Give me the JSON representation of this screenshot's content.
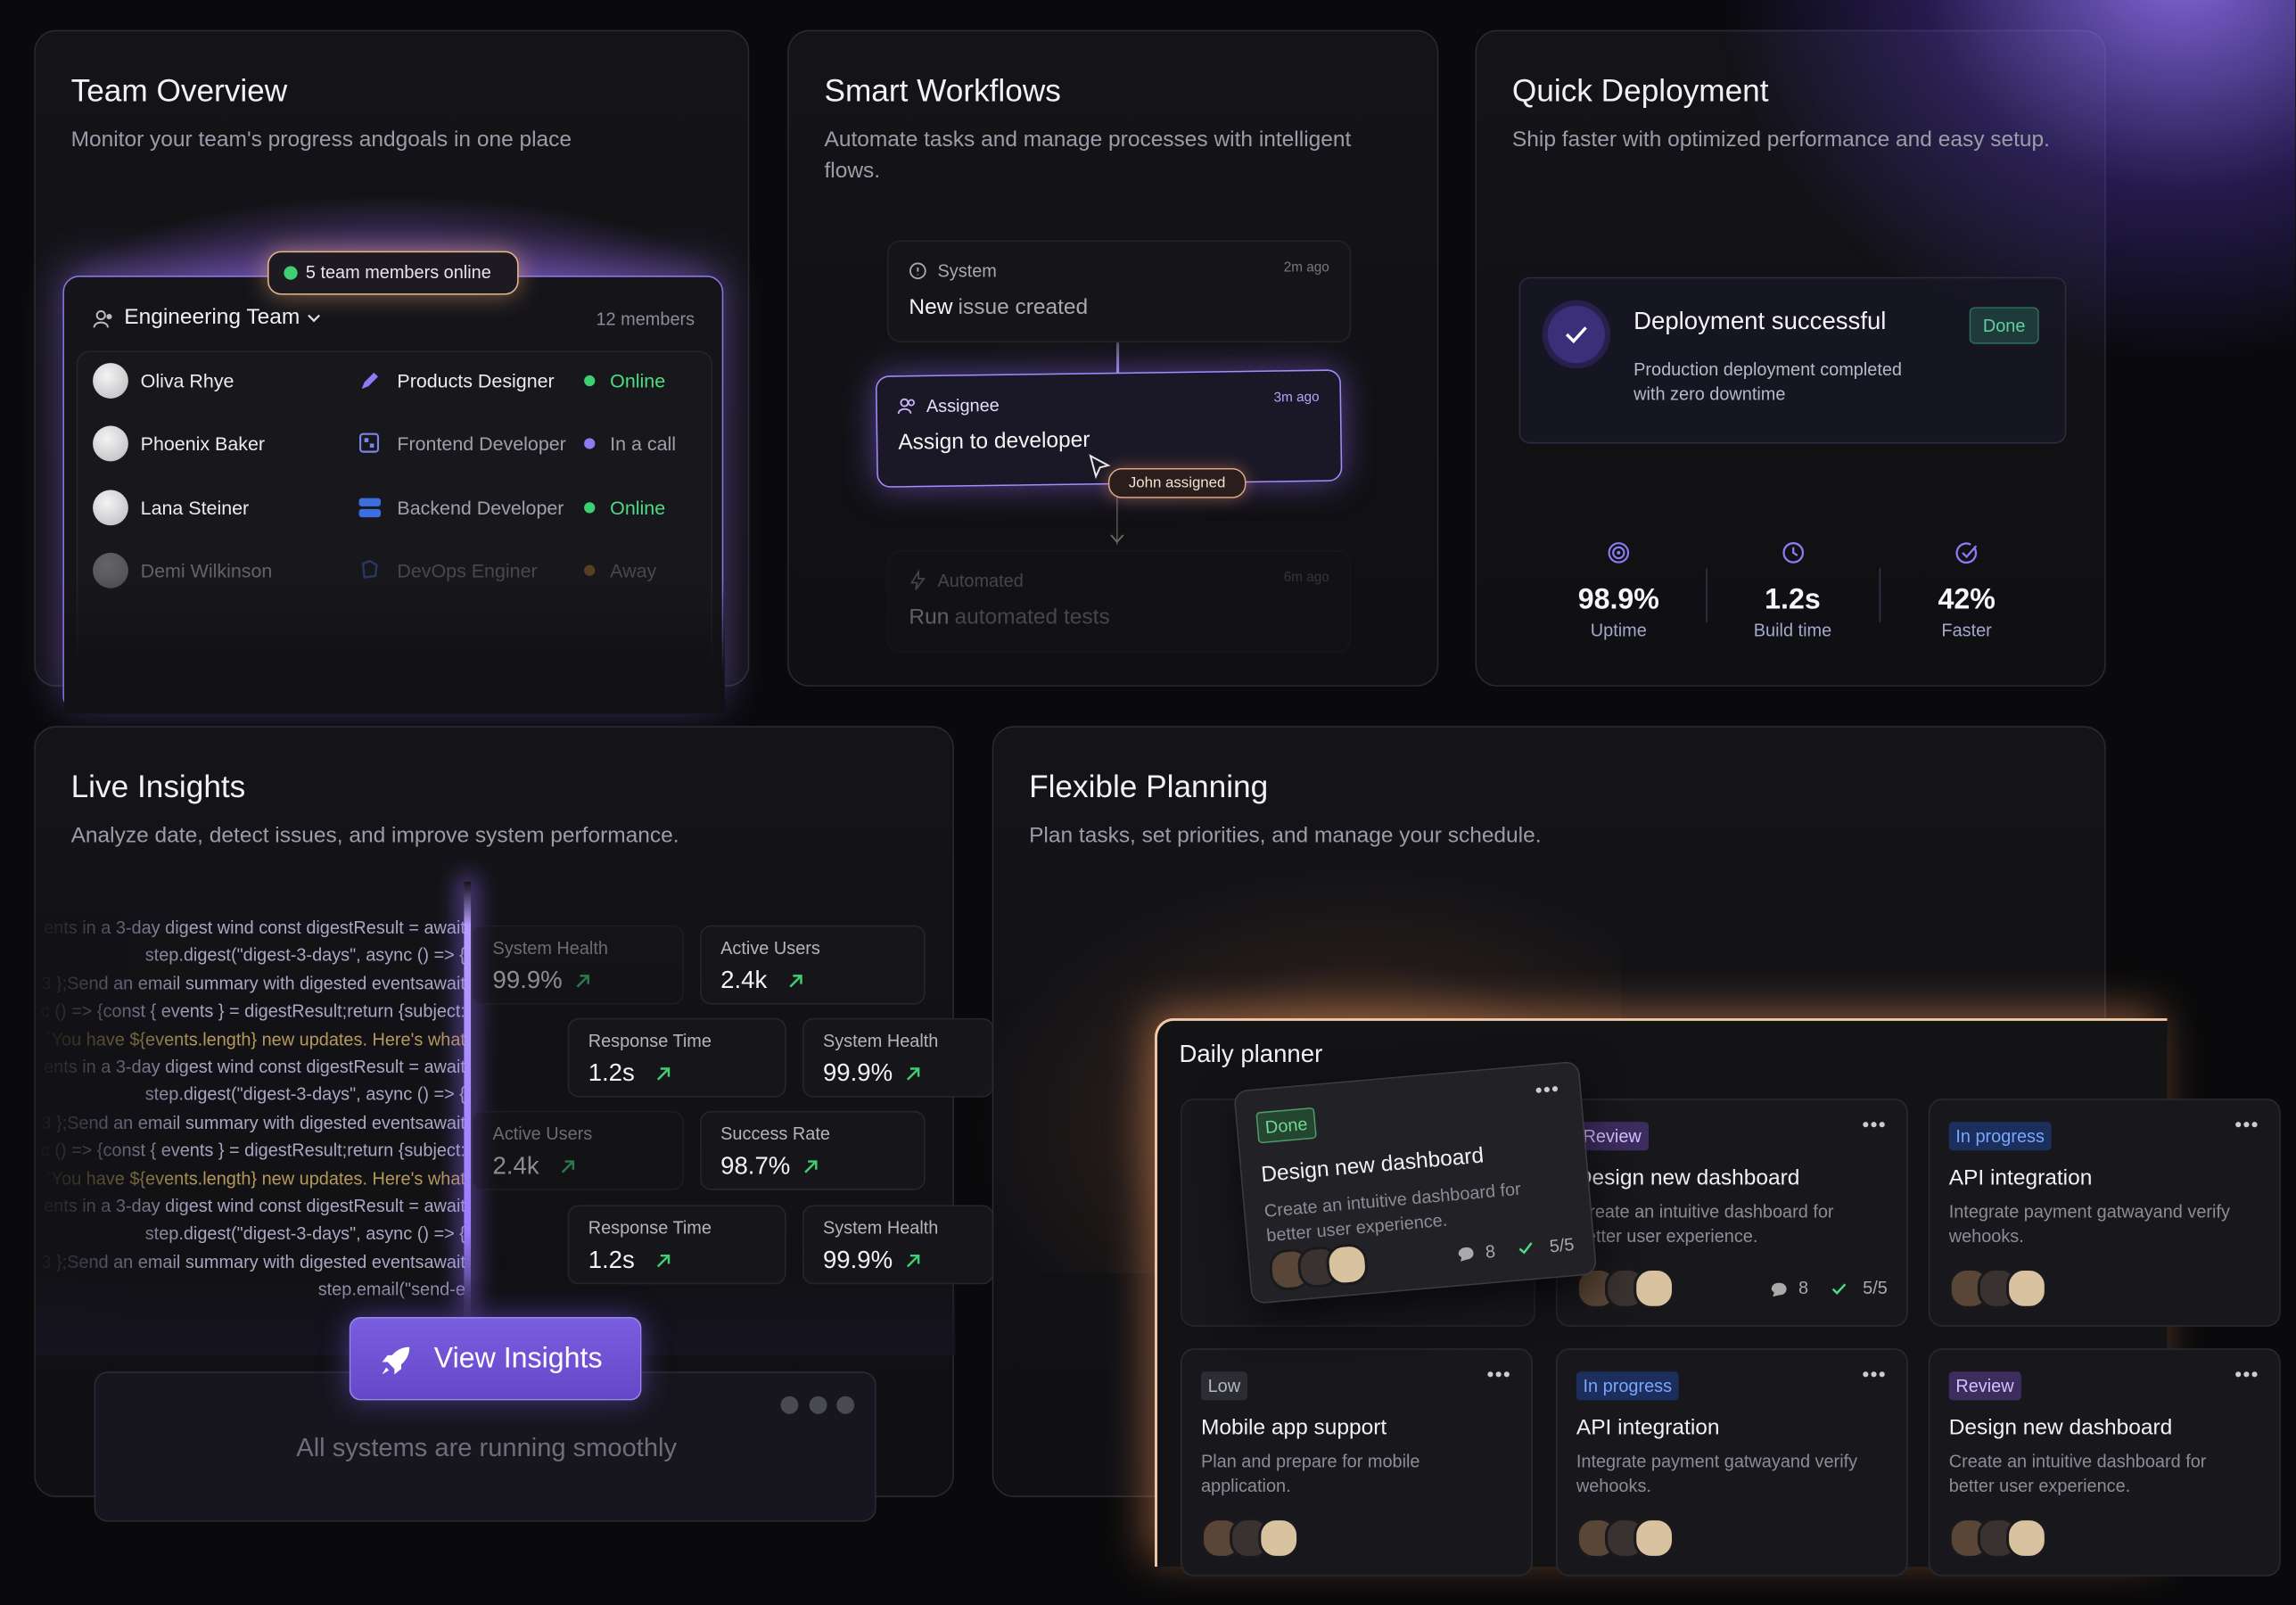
{
  "cards": {
    "team": {
      "title": "Team Overview",
      "subtitle": "Monitor your team's progress andgoals in one place",
      "badge": "5 team members online",
      "team_name": "Engineering Team",
      "member_count": "12 members",
      "members": [
        {
          "name": "Oliva Rhye",
          "role": "Products Designer",
          "status": "Online"
        },
        {
          "name": "Phoenix Baker",
          "role": "Frontend Developer",
          "status": "In a call"
        },
        {
          "name": "Lana Steiner",
          "role": "Backend Developer",
          "status": "Online"
        },
        {
          "name": "Demi Wilkinson",
          "role": "DevOps Enginer",
          "status": "Away"
        }
      ]
    },
    "workflows": {
      "title": "Smart Workflows",
      "subtitle": "Automate tasks and manage processes with intelligent flows.",
      "steps": [
        {
          "label": "System",
          "time": "2m ago",
          "strong": "New",
          "text": "issue created"
        },
        {
          "label": "Assignee",
          "time": "3m ago",
          "strong": "Assign to developer"
        },
        {
          "label": "Automated",
          "time": "6m ago",
          "strong": "Run",
          "text": "automated tests"
        }
      ],
      "tag": "John assigned"
    },
    "deploy": {
      "title": "Quick Deployment",
      "subtitle": "Ship faster with optimized performance and easy setup.",
      "status_title": "Deployment successful",
      "status_badge": "Done",
      "status_text": "Production deployment completed with zero downtime",
      "stats": [
        {
          "value": "98.9%",
          "label": "Uptime"
        },
        {
          "value": "1.2s",
          "label": "Build time"
        },
        {
          "value": "42%",
          "label": "Faster"
        }
      ]
    },
    "insights": {
      "title": "Live Insights",
      "subtitle": "Analyze date, detect issues, and improve system performance.",
      "code_lines": [
        "ents in a 3-day digest wind const digestResult = await",
        "step.digest(\"digest-3-days\", async () => {",
        "3 };Send an email summary with digested eventsawait",
        "c () => {const { events } = digestResult;return {subject:",
        "`You have ${events.length} new updates. Here's what",
        "ents in a 3-day digest wind const digestResult = await",
        "step.digest(\"digest-3-days\", async () => {",
        "3 };Send an email summary with digested eventsawait",
        "c () => {const { events } = digestResult;return {subject:",
        "`You have ${events.length} new updates. Here's what",
        "ents in a 3-day digest wind const digestResult = await",
        "step.digest(\"digest-3-days\", async () => {",
        "3 };Send an email summary with digested eventsawait",
        "step.email(\"send-e"
      ],
      "metrics": [
        {
          "label": "System Health",
          "value": "99.9%"
        },
        {
          "label": "Active Users",
          "value": "2.4k"
        },
        {
          "label": "Response Time",
          "value": "1.2s"
        },
        {
          "label": "System Health",
          "value": "99.9%"
        },
        {
          "label": "Active Users",
          "value": "2.4k"
        },
        {
          "label": "Success Rate",
          "value": "98.7%"
        },
        {
          "label": "Response Time",
          "value": "1.2s"
        },
        {
          "label": "System Health",
          "value": "99.9%"
        }
      ],
      "button": "View Insights",
      "footer": "All systems are running smoothly"
    },
    "planning": {
      "title": "Flexible Planning",
      "subtitle": "Plan tasks, set priorities, and manage your schedule.",
      "planner_title": "Daily planner",
      "tasks": [
        {
          "tag": "Done",
          "title": "Design new dashboard",
          "desc": "Create an intuitive dashboard for better user experience.",
          "comments": "8",
          "checks": "5/5"
        },
        {
          "tag": "Review",
          "title": "Design new dashboard",
          "desc": "Create an intuitive dashboard for better user experience.",
          "comments": "8",
          "checks": "5/5"
        },
        {
          "tag": "In progress",
          "title": "API integration",
          "desc": "Integrate payment gatwayand verify wehooks."
        },
        {
          "tag": "Low",
          "title": "Mobile app support",
          "desc": "Plan and prepare for mobile application."
        },
        {
          "tag": "In progress",
          "title": "API integration",
          "desc": "Integrate payment gatwayand verify wehooks."
        },
        {
          "tag": "Review",
          "title": "Design new dashboard",
          "desc": "Create an intuitive dashboard for better user experience."
        }
      ]
    }
  }
}
